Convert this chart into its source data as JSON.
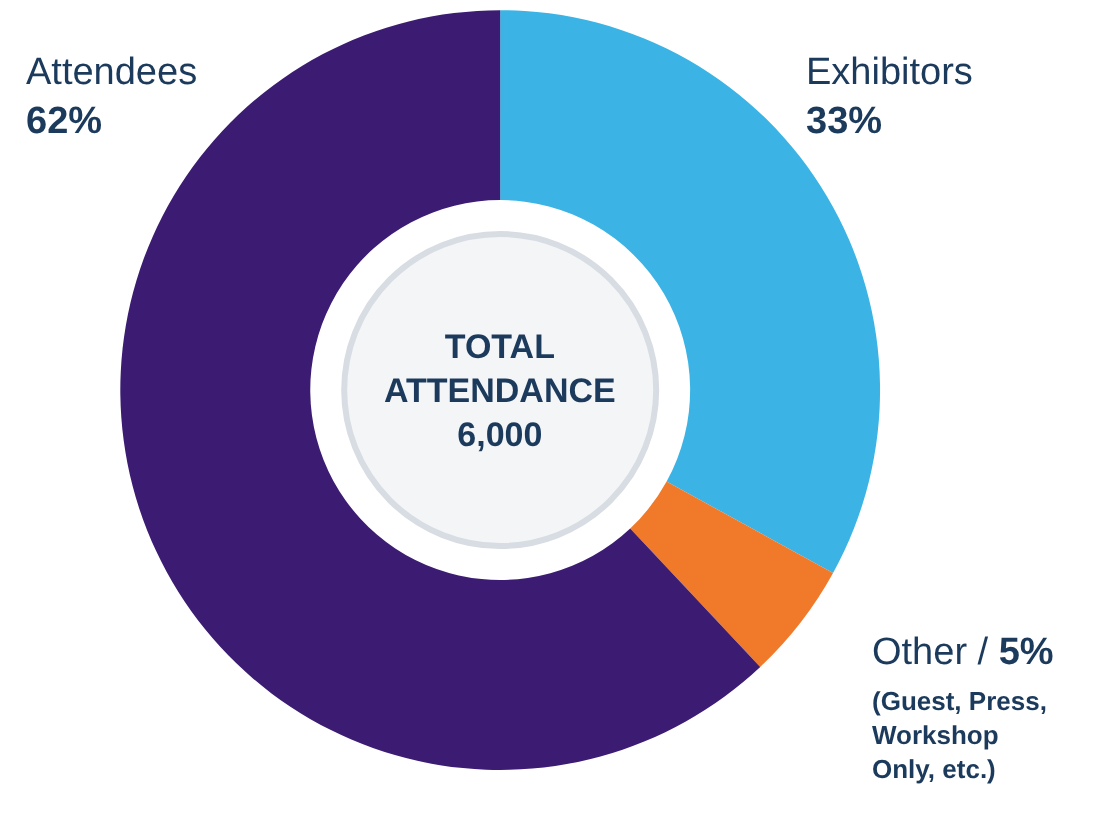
{
  "chart_data": {
    "type": "donut",
    "categories": [
      "Exhibitors",
      "Other /",
      "Attendees"
    ],
    "values": [
      33,
      5,
      62
    ],
    "colors": [
      "#3bb4e5",
      "#f07a2a",
      "#3b1c72"
    ],
    "value_labels": [
      "33%",
      "5%",
      "62%"
    ],
    "annotations": [
      "TOTAL\nATTENDANCE\n6,000",
      "(Guest, Press,\nWorkshop\nOnly, etc.)"
    ],
    "legend": false
  }
}
